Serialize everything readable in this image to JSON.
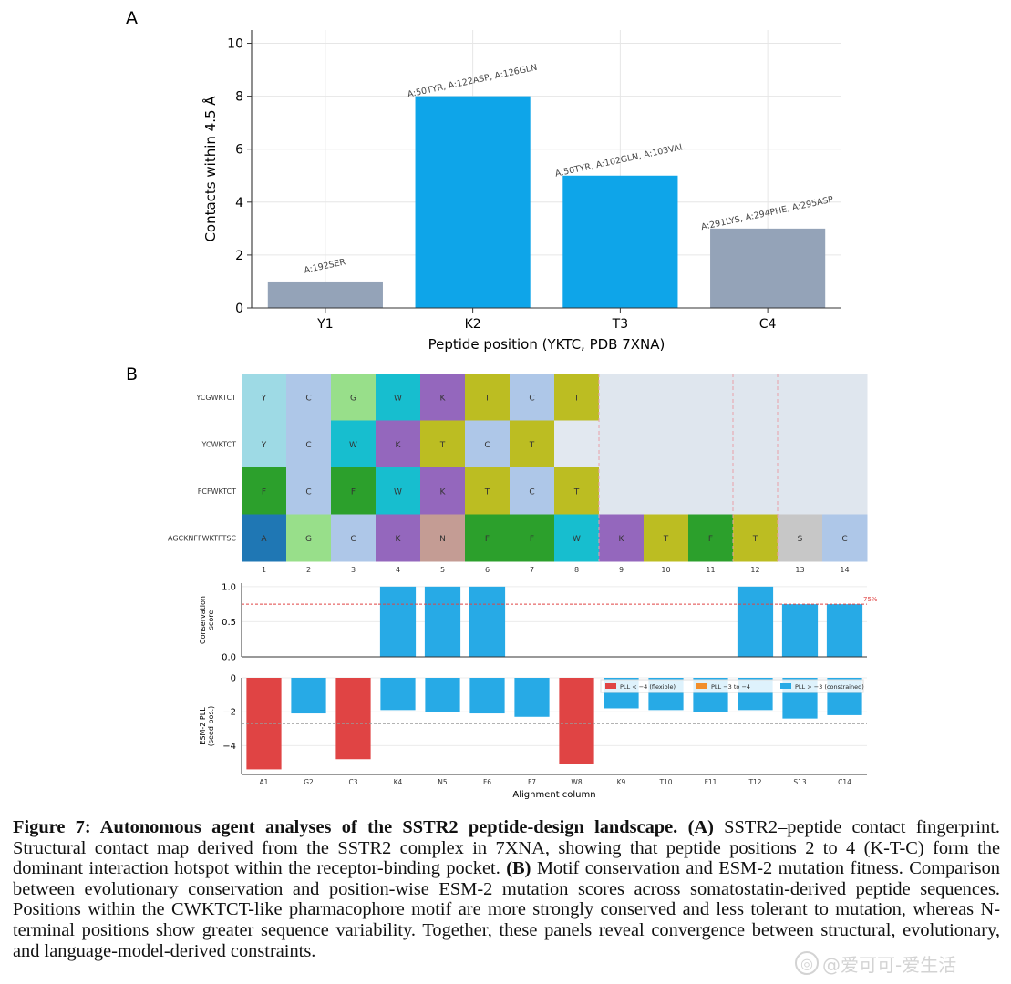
{
  "panel_a_letter": "A",
  "panel_b_letter": "B",
  "chart_data": [
    {
      "id": "contacts",
      "type": "bar",
      "categories": [
        "Y1",
        "K2",
        "T3",
        "C4"
      ],
      "values": [
        1,
        8,
        5,
        3
      ],
      "bar_colors": [
        "#94a3b8",
        "#0ea5e9",
        "#0ea5e9",
        "#94a3b8"
      ],
      "annotations": [
        "A:192SER",
        "A:50TYR, A:122ASP, A:126GLN",
        "A:50TYR, A:102GLN, A:103VAL",
        "A:291LYS, A:294PHE, A:295ASP"
      ],
      "yticks": [
        0,
        2,
        4,
        6,
        8,
        10
      ],
      "ylim": [
        0,
        10.5
      ],
      "ylabel": "Contacts within 4.5 Å",
      "xlabel": "Peptide position (YKTC, PDB 7XNA)"
    },
    {
      "id": "alignment",
      "type": "heatmap",
      "rows": [
        "YCGWKTCT",
        "YCWKTCT",
        "FCFWKTCT",
        "AGCKNFFWKTFTSC"
      ],
      "cells": [
        [
          "Y",
          "C",
          "G",
          "W",
          "K",
          "T",
          "C",
          "T",
          "",
          "",
          "",
          "",
          "",
          ""
        ],
        [
          "Y",
          "C",
          "W",
          "K",
          "T",
          "C",
          "T",
          "",
          "",
          "",
          "",
          "",
          "",
          ""
        ],
        [
          "F",
          "C",
          "F",
          "W",
          "K",
          "T",
          "C",
          "T",
          "",
          "",
          "",
          "",
          "",
          ""
        ],
        [
          "A",
          "G",
          "C",
          "K",
          "N",
          "F",
          "F",
          "W",
          "K",
          "T",
          "F",
          "T",
          "S",
          "C"
        ]
      ],
      "columns": [
        "1",
        "2",
        "3",
        "4",
        "5",
        "6",
        "7",
        "8",
        "9",
        "10",
        "11",
        "12",
        "13",
        "14"
      ],
      "residue_colors": {
        "Y": "#9edae5",
        "C": "#aec7e8",
        "G": "#98df8a",
        "W": "#17becf",
        "K": "#9467bd",
        "T": "#bcbd22",
        "F": "#2ca02c",
        "A": "#1f77b4",
        "N": "#c49c94",
        "S": "#c7c7c7",
        "gap": "#e2e8f0",
        "empty": "#dfe6ee"
      }
    },
    {
      "id": "conservation",
      "type": "bar",
      "categories": [
        "1",
        "2",
        "3",
        "4",
        "5",
        "6",
        "7",
        "8",
        "9",
        "10",
        "11",
        "12",
        "13",
        "14"
      ],
      "values": [
        0,
        0,
        0,
        1.0,
        1.0,
        1.0,
        0,
        0,
        0,
        0,
        0,
        1.0,
        0.75,
        0.75
      ],
      "yticks": [
        0.0,
        0.5,
        1.0
      ],
      "ylim": [
        0,
        1.05
      ],
      "threshold": 0.75,
      "threshold_label": "75%",
      "ylabel": [
        "Conservation",
        "score"
      ]
    },
    {
      "id": "esm",
      "type": "bar",
      "categories": [
        "A1",
        "G2",
        "C3",
        "K4",
        "N5",
        "F6",
        "F7",
        "W8",
        "K9",
        "T10",
        "F11",
        "T12",
        "S13",
        "C14"
      ],
      "values": [
        -5.4,
        -2.1,
        -4.8,
        -1.9,
        -2.0,
        -2.1,
        -2.3,
        -5.1,
        -1.8,
        -1.9,
        -2.0,
        -1.9,
        -2.4,
        -2.2
      ],
      "colors": [
        "#e04444",
        "#27aae6",
        "#e04444",
        "#27aae6",
        "#27aae6",
        "#27aae6",
        "#27aae6",
        "#e04444",
        "#27aae6",
        "#27aae6",
        "#27aae6",
        "#27aae6",
        "#27aae6",
        "#27aae6"
      ],
      "yticks": [
        0,
        -2,
        -4
      ],
      "ylim": [
        -5.7,
        0
      ],
      "mean_line": -2.7,
      "ylabel": [
        "ESM-2 PLL",
        "(seed pos.)"
      ],
      "xlabel": "Alignment column",
      "legend": [
        {
          "label": "PLL < −4 (flexible)",
          "color": "#e04444"
        },
        {
          "label": "PLL −3 to −4",
          "color": "#f28e2b"
        },
        {
          "label": "PLL > −3 (constrained)",
          "color": "#27aae6"
        }
      ]
    }
  ],
  "caption": {
    "figure_label": "Figure 7: Autonomous agent analyses of the SSTR2 peptide-design landscape.",
    "a_label": "(A)",
    "a_text": " SSTR2–peptide contact fingerprint. Structural contact map derived from the SSTR2 complex in 7XNA, showing that peptide positions 2 to 4 (K-T-C) form the dominant interaction hotspot within the receptor-binding pocket.",
    "b_label": "(B)",
    "b_text": " Motif conservation and ESM-2 mutation fitness. Comparison between evolutionary conservation and position-wise ESM-2 mutation scores across somatostatin-derived peptide sequences. Positions within the CWKTCT-like pharmacophore motif are more strongly conserved and less tolerant to mutation, whereas N-terminal positions show greater sequence variability. Together, these panels reveal convergence between structural, evolutionary, and language-model-derived constraints."
  },
  "watermark": "@爱可可-爱生活"
}
